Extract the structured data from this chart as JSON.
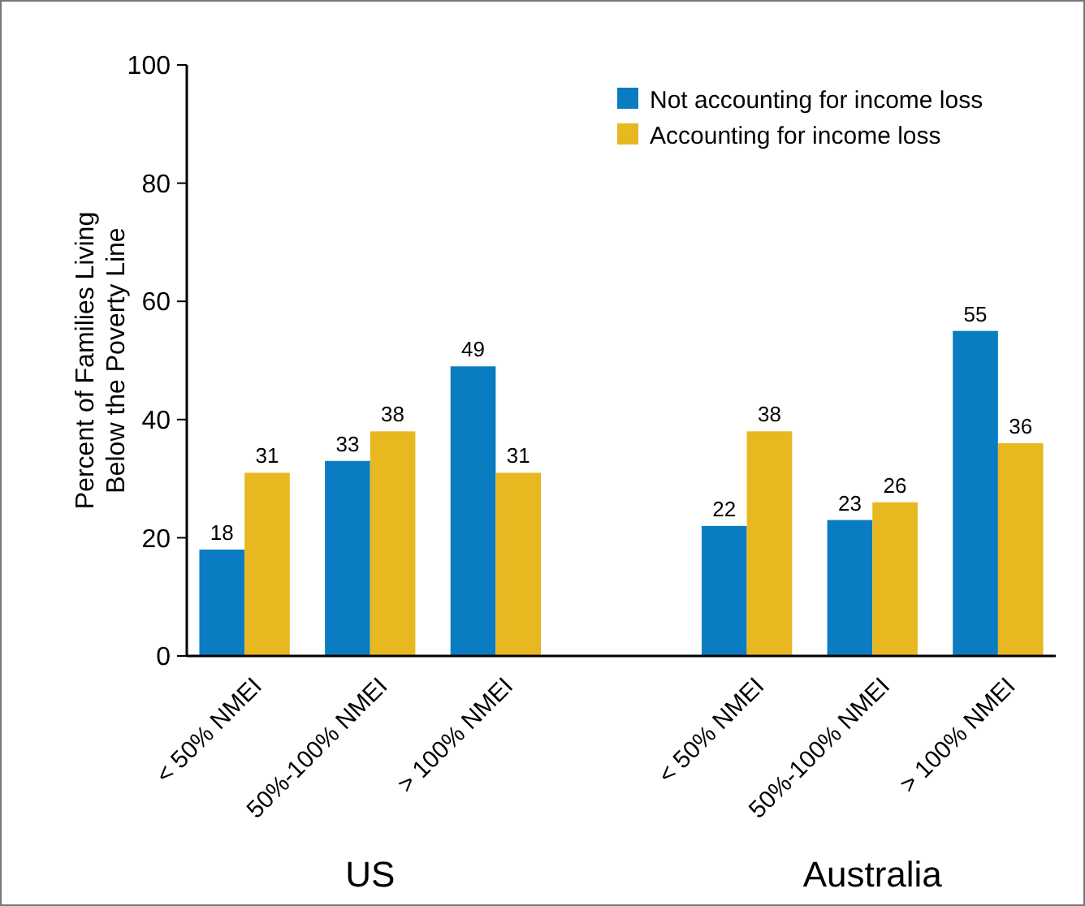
{
  "chart_data": {
    "type": "bar",
    "ylabel": "Percent of Families Living\nBelow the Poverty Line",
    "categories": [
      "< 50% NMEI",
      "50%-100% NMEI",
      "> 100% NMEI",
      null,
      "< 50% NMEI",
      "50%-100% NMEI",
      "> 100% NMEI"
    ],
    "series": [
      {
        "name": "Not accounting for income loss",
        "color": "#0a7cc1",
        "values": [
          18,
          33,
          49,
          null,
          22,
          23,
          55
        ]
      },
      {
        "name": "Accounting for income loss",
        "color": "#e8b820",
        "values": [
          31,
          38,
          31,
          null,
          38,
          26,
          36
        ]
      }
    ],
    "ylim": [
      0,
      100
    ],
    "yticks": [
      0,
      20,
      40,
      60,
      80,
      100
    ],
    "data_labels": true,
    "legend": "top right",
    "grid": false,
    "annotations": [
      "US",
      "Australia"
    ]
  }
}
